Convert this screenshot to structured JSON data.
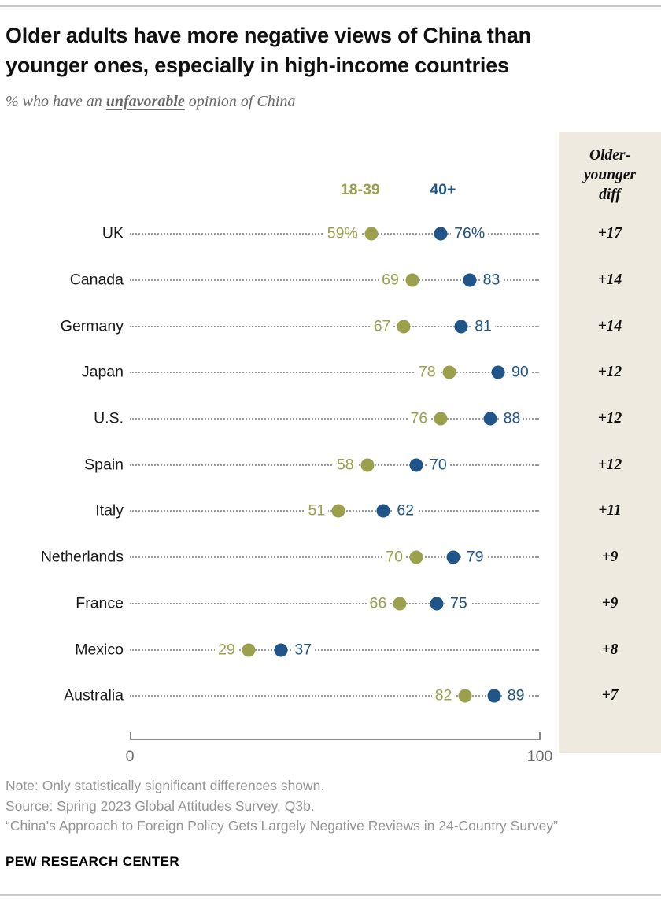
{
  "chart_data": {
    "type": "dot-plot",
    "title": "Older adults have more negative views of China than younger ones, especially in high-income countries",
    "subtitle_prefix": "% who have an ",
    "subtitle_emphasis": "unfavorable",
    "subtitle_suffix": " opinion of China",
    "legend": [
      {
        "label": "18-39",
        "color": "#9aa04b"
      },
      {
        "label": "40+",
        "color": "#20558a"
      }
    ],
    "diff_header": "Older-younger diff",
    "xlim": [
      0,
      100
    ],
    "x_tick_labels": [
      "0",
      "100"
    ],
    "rows": [
      {
        "country": "UK",
        "young": 59,
        "old": 76,
        "young_label": "59%",
        "old_label": "76%",
        "diff": "+17"
      },
      {
        "country": "Canada",
        "young": 69,
        "old": 83,
        "young_label": "69",
        "old_label": "83",
        "diff": "+14"
      },
      {
        "country": "Germany",
        "young": 67,
        "old": 81,
        "young_label": "67",
        "old_label": "81",
        "diff": "+14"
      },
      {
        "country": "Japan",
        "young": 78,
        "old": 90,
        "young_label": "78",
        "old_label": "90",
        "diff": "+12"
      },
      {
        "country": "U.S.",
        "young": 76,
        "old": 88,
        "young_label": "76",
        "old_label": "88",
        "diff": "+12"
      },
      {
        "country": "Spain",
        "young": 58,
        "old": 70,
        "young_label": "58",
        "old_label": "70",
        "diff": "+12"
      },
      {
        "country": "Italy",
        "young": 51,
        "old": 62,
        "young_label": "51",
        "old_label": "62",
        "diff": "+11"
      },
      {
        "country": "Netherlands",
        "young": 70,
        "old": 79,
        "young_label": "70",
        "old_label": "79",
        "diff": "+9"
      },
      {
        "country": "France",
        "young": 66,
        "old": 75,
        "young_label": "66",
        "old_label": "75",
        "diff": "+9"
      },
      {
        "country": "Mexico",
        "young": 29,
        "old": 37,
        "young_label": "29",
        "old_label": "37",
        "diff": "+8"
      },
      {
        "country": "Australia",
        "young": 82,
        "old": 89,
        "young_label": "82",
        "old_label": "89",
        "diff": "+7"
      }
    ]
  },
  "colors": {
    "young_series": "#9aa04b",
    "old_series": "#20558a",
    "diff_panel_bg": "#eeeae0",
    "leader_dots": "#9b9b9b",
    "notes_text": "#949494"
  },
  "notes": {
    "note": "Note: Only statistically significant differences shown.",
    "source": "Source: Spring 2023 Global Attitudes Survey. Q3b.",
    "report": "“China’s Approach to Foreign Policy Gets Largely Negative Reviews in 24-Country Survey”"
  },
  "footer": {
    "brand": "PEW RESEARCH CENTER"
  }
}
